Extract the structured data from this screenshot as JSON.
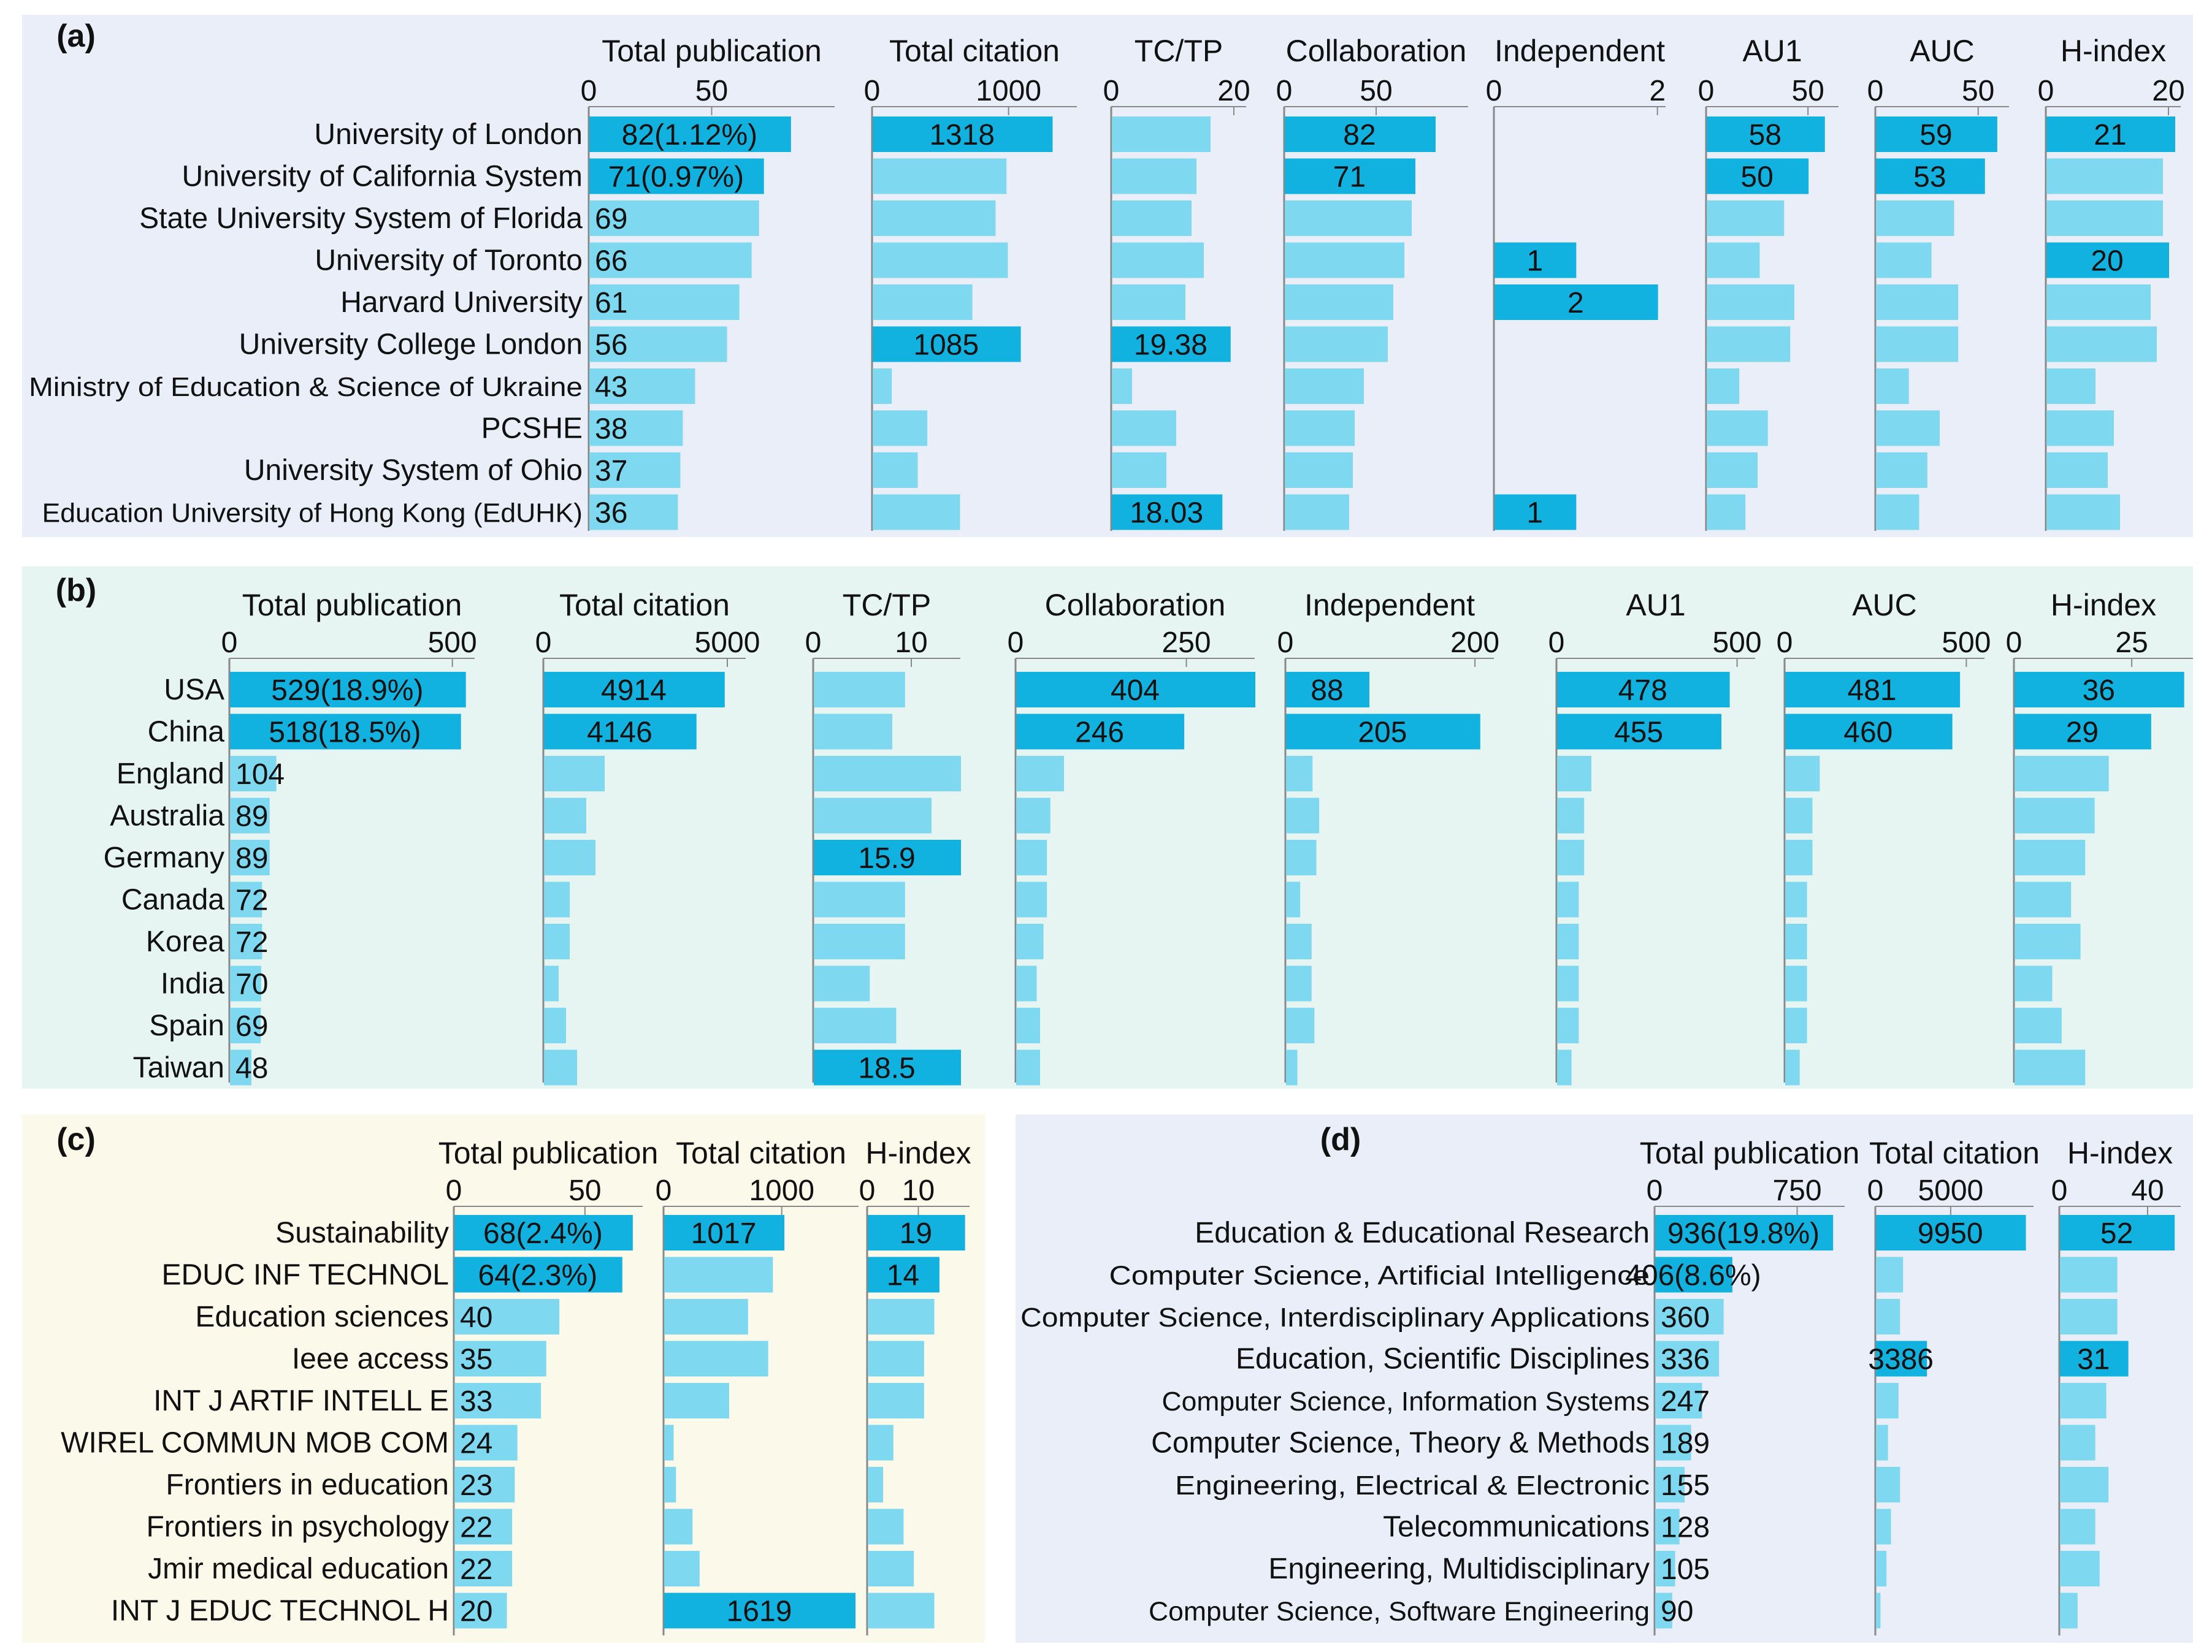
{
  "colors": {
    "bar_light": "#7dd8f0",
    "bar_highlight": "#12b2e0",
    "axis": "#888888",
    "text": "#111111"
  },
  "chart_data": [
    {
      "id": "a",
      "type": "bar",
      "orientation": "horizontal",
      "panel_label": "(a)",
      "categories": [
        "University of London",
        "University of California System",
        "State University System of Florida",
        "University of Toronto",
        "Harvard University",
        "University College London",
        "Ministry of Education & Science of Ukraine",
        "PCSHE",
        "University System of Ohio",
        "Education University of Hong Kong (EdUHK)"
      ],
      "series": [
        {
          "name": "Total publication",
          "axis_max": 100,
          "ticks": [
            0,
            50
          ],
          "values": [
            82,
            71,
            69,
            66,
            61,
            56,
            43,
            38,
            37,
            36
          ],
          "labels": [
            "82(1.12%)",
            "71(0.97%)",
            "69",
            "66",
            "61",
            "56",
            "43",
            "38",
            "37",
            "36"
          ],
          "highlight": [
            true,
            true,
            false,
            false,
            false,
            false,
            false,
            false,
            false,
            false
          ]
        },
        {
          "name": "Total citation",
          "axis_max": 1500,
          "ticks": [
            0,
            1000
          ],
          "values": [
            1318,
            980,
            900,
            990,
            730,
            1085,
            140,
            400,
            330,
            640
          ],
          "labels": [
            "1318",
            "",
            "",
            "",
            "",
            "1085",
            "",
            "",
            "",
            ""
          ],
          "highlight": [
            true,
            false,
            false,
            false,
            false,
            true,
            false,
            false,
            false,
            false
          ]
        },
        {
          "name": "TC/TP",
          "axis_max": 22,
          "ticks": [
            0,
            20
          ],
          "values": [
            16.1,
            13.8,
            13.0,
            15.0,
            12.0,
            19.38,
            3.3,
            10.5,
            8.9,
            18.03
          ],
          "labels": [
            "",
            "",
            "",
            "",
            "",
            "19.38",
            "",
            "",
            "",
            "18.03"
          ],
          "highlight": [
            false,
            false,
            false,
            false,
            false,
            true,
            false,
            false,
            false,
            true
          ]
        },
        {
          "name": "Collaboration",
          "axis_max": 100,
          "ticks": [
            0,
            50
          ],
          "values": [
            82,
            71,
            69,
            65,
            59,
            56,
            43,
            38,
            37,
            35
          ],
          "labels": [
            "82",
            "71",
            "",
            "",
            "",
            "",
            "",
            "",
            "",
            ""
          ],
          "highlight": [
            true,
            true,
            false,
            false,
            false,
            false,
            false,
            false,
            false,
            false
          ]
        },
        {
          "name": "Independent",
          "axis_max": 2.1,
          "ticks": [
            0,
            2
          ],
          "values": [
            0,
            0,
            0,
            1,
            2,
            0,
            0,
            0,
            0,
            1
          ],
          "labels": [
            "",
            "",
            "",
            "1",
            "2",
            "",
            "",
            "",
            "",
            "1"
          ],
          "highlight": [
            false,
            false,
            false,
            true,
            true,
            false,
            false,
            false,
            false,
            true
          ]
        },
        {
          "name": "AU1",
          "axis_max": 65,
          "ticks": [
            0,
            50
          ],
          "values": [
            58,
            50,
            38,
            26,
            43,
            41,
            16,
            30,
            25,
            19
          ],
          "labels": [
            "58",
            "50",
            "",
            "",
            "",
            "",
            "",
            "",
            "",
            ""
          ],
          "highlight": [
            true,
            true,
            false,
            false,
            false,
            false,
            false,
            false,
            false,
            false
          ]
        },
        {
          "name": "AUC",
          "axis_max": 65,
          "ticks": [
            0,
            50
          ],
          "values": [
            59,
            53,
            38,
            27,
            40,
            40,
            16,
            31,
            25,
            21
          ],
          "labels": [
            "59",
            "53",
            "",
            "",
            "",
            "",
            "",
            "",
            "",
            ""
          ],
          "highlight": [
            true,
            true,
            false,
            false,
            false,
            false,
            false,
            false,
            false,
            false
          ]
        },
        {
          "name": "H-index",
          "axis_max": 22,
          "ticks": [
            0,
            20
          ],
          "values": [
            21,
            19,
            19,
            20,
            17,
            18,
            8,
            11,
            10,
            12
          ],
          "labels": [
            "21",
            "",
            "",
            "20",
            "",
            "",
            "",
            "",
            "",
            ""
          ],
          "highlight": [
            true,
            false,
            false,
            true,
            false,
            false,
            false,
            false,
            false,
            false
          ]
        }
      ]
    },
    {
      "id": "b",
      "type": "bar",
      "orientation": "horizontal",
      "panel_label": "(b)",
      "categories": [
        "USA",
        "China",
        "England",
        "Australia",
        "Germany",
        "Canada",
        "Korea",
        "India",
        "Spain",
        "Taiwan"
      ],
      "series": [
        {
          "name": "Total publication",
          "axis_max": 550,
          "ticks": [
            0,
            500
          ],
          "values": [
            529,
            518,
            104,
            89,
            89,
            72,
            72,
            70,
            69,
            48
          ],
          "labels": [
            "529(18.9%)",
            "518(18.5%)",
            "104",
            "89",
            "89",
            "72",
            "72",
            "70",
            "69",
            "48"
          ],
          "highlight": [
            true,
            true,
            false,
            false,
            false,
            false,
            false,
            false,
            false,
            false
          ]
        },
        {
          "name": "Total citation",
          "axis_max": 5500,
          "ticks": [
            0,
            5000
          ],
          "values": [
            4914,
            4146,
            1650,
            1150,
            1400,
            700,
            700,
            400,
            600,
            900
          ],
          "labels": [
            "4914",
            "4146",
            "",
            "",
            "",
            "",
            "",
            "",
            "",
            ""
          ],
          "highlight": [
            true,
            true,
            false,
            false,
            false,
            false,
            false,
            false,
            false,
            false
          ]
        },
        {
          "name": "TC/TP",
          "axis_max": 15,
          "ticks": [
            0,
            10
          ],
          "values": [
            9.3,
            8.0,
            15.3,
            12.0,
            15.9,
            9.3,
            9.3,
            5.7,
            8.4,
            18.5
          ],
          "labels": [
            "",
            "",
            "",
            "",
            "15.9",
            "",
            "",
            "",
            "",
            "18.5"
          ],
          "highlight": [
            false,
            false,
            false,
            false,
            true,
            false,
            false,
            false,
            false,
            true
          ]
        },
        {
          "name": "Collaboration",
          "axis_max": 350,
          "ticks": [
            0,
            250
          ],
          "values": [
            404,
            246,
            70,
            50,
            45,
            45,
            40,
            30,
            35,
            35
          ],
          "labels": [
            "404",
            "246",
            "",
            "",
            "",
            "",
            "",
            "",
            "",
            ""
          ],
          "highlight": [
            true,
            true,
            false,
            false,
            false,
            false,
            false,
            false,
            false,
            false
          ]
        },
        {
          "name": "Independent",
          "axis_max": 220,
          "ticks": [
            0,
            200
          ],
          "values": [
            88,
            205,
            28,
            35,
            32,
            15,
            27,
            27,
            30,
            12
          ],
          "labels": [
            "88",
            "205",
            "",
            "",
            "",
            "",
            "",
            "",
            "",
            ""
          ],
          "highlight": [
            true,
            true,
            false,
            false,
            false,
            false,
            false,
            false,
            false,
            false
          ]
        },
        {
          "name": "AU1",
          "axis_max": 550,
          "ticks": [
            0,
            500
          ],
          "values": [
            478,
            455,
            95,
            75,
            75,
            60,
            60,
            60,
            60,
            40
          ],
          "labels": [
            "478",
            "455",
            "",
            "",
            "",
            "",
            "",
            "",
            "",
            ""
          ],
          "highlight": [
            true,
            true,
            false,
            false,
            false,
            false,
            false,
            false,
            false,
            false
          ]
        },
        {
          "name": "AUC",
          "axis_max": 550,
          "ticks": [
            0,
            500
          ],
          "values": [
            481,
            460,
            95,
            75,
            75,
            60,
            60,
            60,
            60,
            40
          ],
          "labels": [
            "481",
            "460",
            "",
            "",
            "",
            "",
            "",
            "",
            "",
            ""
          ],
          "highlight": [
            true,
            true,
            false,
            false,
            false,
            false,
            false,
            false,
            false,
            false
          ]
        },
        {
          "name": "H-index",
          "axis_max": 38,
          "ticks": [
            0,
            25
          ],
          "values": [
            36,
            29,
            20,
            17,
            15,
            12,
            14,
            8,
            10,
            15
          ],
          "labels": [
            "36",
            "29",
            "",
            "",
            "",
            "",
            "",
            "",
            "",
            ""
          ],
          "highlight": [
            true,
            true,
            false,
            false,
            false,
            false,
            false,
            false,
            false,
            false
          ]
        }
      ]
    },
    {
      "id": "c",
      "type": "bar",
      "orientation": "horizontal",
      "panel_label": "(c)",
      "categories": [
        "Sustainability",
        "EDUC INF TECHNOL",
        "Education sciences",
        "Ieee access",
        "INT J ARTIF INTELL E",
        "WIREL COMMUN MOB COM",
        "Frontiers in education",
        "Frontiers in psychology",
        "Jmir medical education",
        "INT J EDUC TECHNOL H"
      ],
      "series": [
        {
          "name": "Total publication",
          "axis_max": 72,
          "ticks": [
            0,
            50
          ],
          "values": [
            68,
            64,
            40,
            35,
            33,
            24,
            23,
            22,
            22,
            20
          ],
          "labels": [
            "68(2.4%)",
            "64(2.3%)",
            "40",
            "35",
            "33",
            "24",
            "23",
            "22",
            "22",
            "20"
          ],
          "highlight": [
            true,
            true,
            false,
            false,
            false,
            false,
            false,
            false,
            false,
            false
          ]
        },
        {
          "name": "Total citation",
          "axis_max": 1650,
          "ticks": [
            0,
            1000
          ],
          "values": [
            1017,
            920,
            710,
            880,
            550,
            80,
            100,
            240,
            300,
            1619
          ],
          "labels": [
            "1017",
            "",
            "",
            "",
            "",
            "",
            "",
            "",
            "",
            "1619"
          ],
          "highlight": [
            true,
            false,
            false,
            false,
            false,
            false,
            false,
            false,
            false,
            true
          ]
        },
        {
          "name": "H-index",
          "axis_max": 20,
          "ticks": [
            0,
            10
          ],
          "values": [
            19,
            14,
            13,
            11,
            11,
            5,
            3,
            7,
            9,
            13
          ],
          "labels": [
            "19",
            "14",
            "",
            "",
            "",
            "",
            "",
            "",
            "",
            ""
          ],
          "highlight": [
            true,
            true,
            false,
            false,
            false,
            false,
            false,
            false,
            false,
            false
          ]
        }
      ]
    },
    {
      "id": "d",
      "type": "bar",
      "orientation": "horizontal",
      "panel_label": "(d)",
      "categories": [
        "Education & Educational Research",
        "Computer Science, Artificial Intelligence",
        "Computer Science, Interdisciplinary Applications",
        "Education, Scientific Disciplines",
        "Computer Science, Information Systems",
        "Computer Science, Theory & Methods",
        "Engineering, Electrical & Electronic",
        "Telecommunications",
        "Engineering, Multidisciplinary",
        "Computer Science, Software Engineering"
      ],
      "series": [
        {
          "name": "Total publication",
          "axis_max": 1000,
          "ticks": [
            0,
            750
          ],
          "values": [
            936,
            406,
            360,
            336,
            247,
            189,
            155,
            128,
            105,
            90
          ],
          "labels": [
            "936(19.8%)",
            "406(8.6%)",
            "360",
            "336",
            "247",
            "189",
            "155",
            "128",
            "105",
            "90"
          ],
          "highlight": [
            true,
            true,
            false,
            false,
            false,
            false,
            false,
            false,
            false,
            false
          ]
        },
        {
          "name": "Total citation",
          "axis_max": 10500,
          "ticks": [
            0,
            5000
          ],
          "values": [
            9950,
            1800,
            1600,
            3386,
            1500,
            800,
            1600,
            1000,
            700,
            300
          ],
          "labels": [
            "9950",
            "",
            "",
            "3386",
            "",
            "",
            "",
            "",
            "",
            ""
          ],
          "highlight": [
            true,
            false,
            false,
            true,
            false,
            false,
            false,
            false,
            false,
            false
          ]
        },
        {
          "name": "H-index",
          "axis_max": 55,
          "ticks": [
            0,
            40
          ],
          "values": [
            52,
            26,
            26,
            31,
            21,
            16,
            22,
            16,
            18,
            8
          ],
          "labels": [
            "52",
            "",
            "",
            "31",
            "",
            "",
            "",
            "",
            "",
            ""
          ],
          "highlight": [
            true,
            false,
            false,
            true,
            false,
            false,
            false,
            false,
            false,
            false
          ]
        }
      ]
    }
  ]
}
